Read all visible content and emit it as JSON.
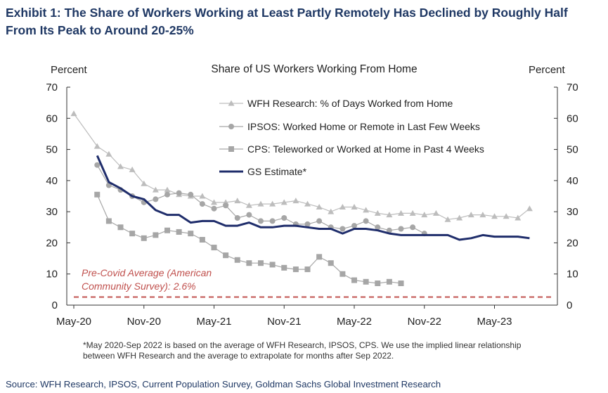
{
  "exhibit": {
    "title_line1": "Exhibit 1: The Share of Workers Working at Least Partly Remotely Has Declined by Roughly Half",
    "title_line2": "From Its Peak to Around 20-25%"
  },
  "footnote": "*May 2020-Sep 2022 is based on the average of WFH Research, IPSOS, CPS. We use the implied linear relationship between WFH Research and the average to extrapolate for months after Sep 2022.",
  "source": "Source: WFH Research, IPSOS, Current Population Survey, Goldman Sachs Global Investment Research",
  "colors": {
    "title": "#1f3864",
    "wfh": "#bdbdbd",
    "ipsos": "#a6a6a6",
    "cps": "#a6a6a6",
    "gs": "#1f2d6b",
    "precovid": "#c0504d"
  },
  "chart_data": {
    "type": "line",
    "title": "Share of US Workers Working From Home",
    "ylabel_left": "Percent",
    "ylabel_right": "Percent",
    "ylim": [
      0,
      70
    ],
    "yticks": [
      0,
      10,
      20,
      30,
      40,
      50,
      60,
      70
    ],
    "xlim": [
      0,
      40
    ],
    "xticks": [
      {
        "m": 0,
        "label": "May-20"
      },
      {
        "m": 6,
        "label": "Nov-20"
      },
      {
        "m": 12,
        "label": "May-21"
      },
      {
        "m": 18,
        "label": "Nov-21"
      },
      {
        "m": 24,
        "label": "May-22"
      },
      {
        "m": 30,
        "label": "Nov-22"
      },
      {
        "m": 36,
        "label": "May-23"
      }
    ],
    "grid": false,
    "legend_position": "top-right",
    "series": [
      {
        "name": "WFH Research: % of Days Worked from Home",
        "marker": "triangle",
        "color": "#bdbdbd",
        "x": [
          0,
          2,
          3,
          4,
          5,
          6,
          7,
          8,
          9,
          10,
          11,
          12,
          13,
          14,
          15,
          16,
          17,
          18,
          19,
          20,
          21,
          22,
          23,
          24,
          25,
          26,
          27,
          28,
          29,
          30,
          31,
          32,
          33,
          34,
          35,
          36,
          37,
          38,
          39
        ],
        "values": [
          61.5,
          51,
          48.5,
          44.5,
          43.5,
          39,
          37,
          37,
          35.5,
          35,
          35,
          33,
          33,
          33.5,
          32,
          32.5,
          32.5,
          33,
          33.5,
          32.5,
          31.5,
          30,
          31.5,
          31.5,
          30.5,
          29.5,
          29,
          29.5,
          29.5,
          29,
          29.5,
          27.5,
          28,
          29,
          29,
          28.5,
          28.5,
          28,
          31
        ]
      },
      {
        "name": "IPSOS: Worked Home or Remote in Last Few Weeks",
        "marker": "circle",
        "color": "#a6a6a6",
        "x": [
          2,
          3,
          4,
          5,
          6,
          7,
          8,
          9,
          10,
          11,
          12,
          13,
          14,
          15,
          16,
          17,
          18,
          19,
          20,
          21,
          22,
          23,
          24,
          25,
          26,
          27,
          28,
          29,
          30
        ],
        "values": [
          45,
          38.5,
          37,
          35,
          33,
          34,
          35.5,
          36,
          35.5,
          32.5,
          31,
          32,
          28,
          29,
          27,
          27,
          28,
          26,
          26,
          27,
          25,
          24.5,
          25.5,
          27,
          25,
          24,
          24.5,
          25,
          23
        ]
      },
      {
        "name": "CPS: Teleworked or Worked at Home in Past 4 Weeks",
        "marker": "square",
        "color": "#a6a6a6",
        "x": [
          2,
          3,
          4,
          5,
          6,
          7,
          8,
          9,
          10,
          11,
          12,
          13,
          14,
          15,
          16,
          17,
          18,
          19,
          20,
          21,
          22,
          23,
          24,
          25,
          26,
          27,
          28
        ],
        "values": [
          35.5,
          27,
          25,
          23,
          21.5,
          22.5,
          24,
          23.5,
          23,
          21,
          18.5,
          16,
          14.5,
          13.5,
          13.5,
          13,
          12,
          11.5,
          11.5,
          15.5,
          13.5,
          10,
          8,
          7.5,
          7,
          7.5,
          7
        ]
      },
      {
        "name": "GS Estimate*",
        "marker": "none",
        "color": "#1f2d6b",
        "x": [
          2,
          3,
          4,
          5,
          6,
          7,
          8,
          9,
          10,
          11,
          12,
          13,
          14,
          15,
          16,
          17,
          18,
          19,
          20,
          21,
          22,
          23,
          24,
          25,
          26,
          27,
          28,
          29,
          30,
          31,
          32,
          33,
          34,
          35,
          36,
          37,
          38,
          39
        ],
        "values": [
          48,
          39.5,
          37.5,
          35,
          34,
          30.5,
          29,
          29,
          26.5,
          27,
          27,
          25.5,
          25.5,
          26.5,
          25,
          25,
          25.5,
          25.5,
          25,
          24.5,
          24.5,
          23,
          24.5,
          24.5,
          24,
          23,
          22.5,
          22.5,
          22.5,
          22.5,
          22.5,
          21,
          21.5,
          22.5,
          22,
          22,
          22,
          21.5
        ]
      }
    ],
    "reference_line": {
      "value": 2.6,
      "label_line1": "Pre-Covid Average (American",
      "label_line2": "Community Survey): 2.6%",
      "color": "#c0504d",
      "style": "dashed"
    }
  }
}
